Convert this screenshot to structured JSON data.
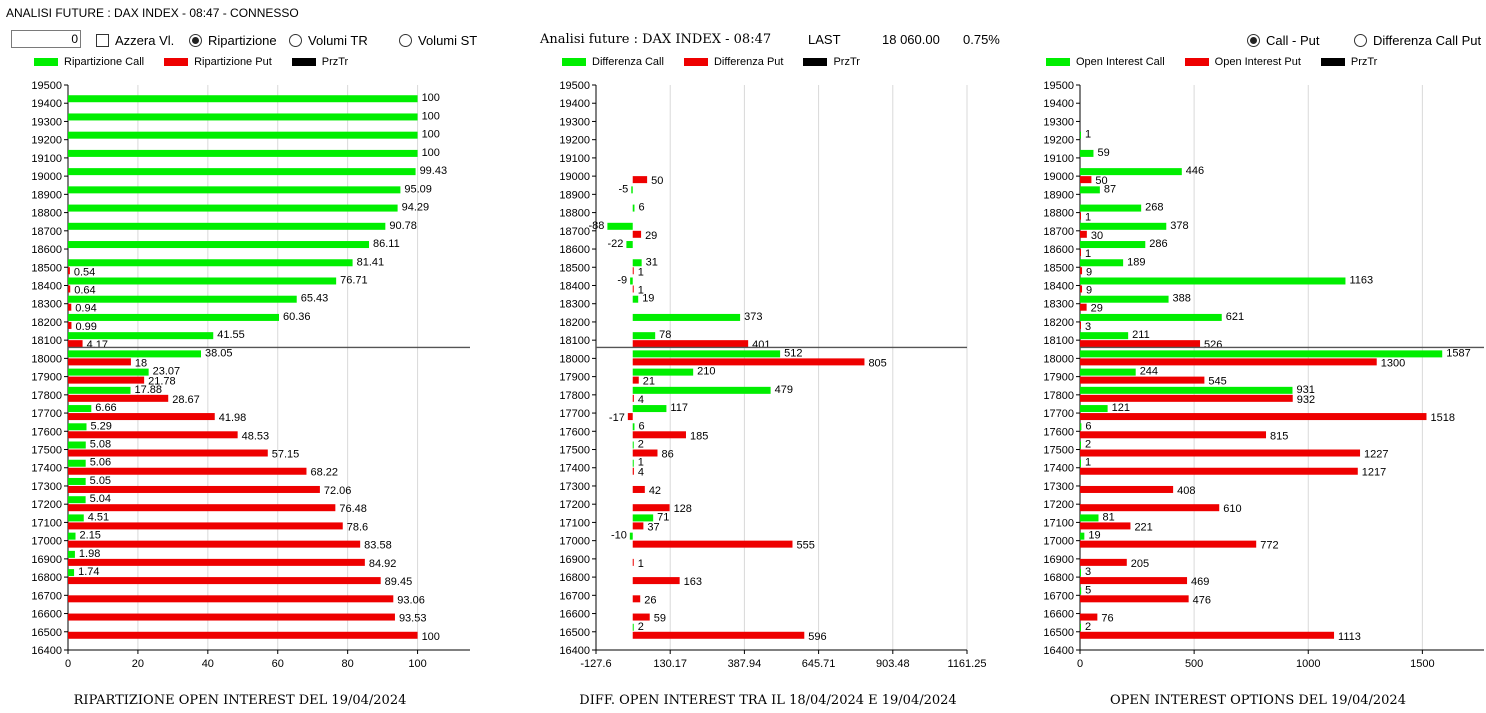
{
  "window": {
    "title": "ANALISI FUTURE : DAX INDEX - 08:47 - CONNESSO"
  },
  "controls": {
    "numeric_value": "0",
    "reset_checkbox_label": "Azzera Vl.",
    "radio_ripartizione": "Ripartizione",
    "radio_volumi_tr": "Volumi TR",
    "radio_volumi_st": "Volumi ST",
    "radio_call_put": "Call - Put",
    "radio_diff_call_put": "Differenza Call Put"
  },
  "header": {
    "title": "Analisi future : DAX INDEX - 08:47",
    "last_label": "LAST",
    "last_value": "18 060.00",
    "change": "0.75%"
  },
  "colors": {
    "call": "#00ee00",
    "put": "#ee0000",
    "przTr": "#000000",
    "grid": "#d9d9d9"
  },
  "chart_data": [
    {
      "type": "bar",
      "orientation": "horizontal",
      "title": "RIPARTIZIONE OPEN INTEREST DEL 19/04/2024",
      "legend": [
        "Ripartizione Call",
        "Ripartizione Put",
        "PrzTr"
      ],
      "categories": [
        16400,
        16500,
        16600,
        16700,
        16800,
        16900,
        17000,
        17100,
        17200,
        17300,
        17400,
        17500,
        17600,
        17700,
        17800,
        17900,
        18000,
        18100,
        18200,
        18300,
        18400,
        18500,
        18600,
        18700,
        18800,
        18900,
        19000,
        19100,
        19200,
        19300,
        19400,
        19500
      ],
      "series": [
        {
          "name": "Ripartizione Call",
          "values": {
            "16800": 1.74,
            "16900": 1.98,
            "17000": 2.15,
            "17100": 4.51,
            "17200": 5.04,
            "17300": 5.05,
            "17400": 5.06,
            "17500": 5.08,
            "17600": 5.29,
            "17700": 6.66,
            "17800": 17.88,
            "17900": 23.07,
            "18000": 38.05,
            "18100": 41.55,
            "18200": 60.36,
            "18300": 65.43,
            "18400": 76.71,
            "18500": 81.41,
            "18600": 86.11,
            "18700": 90.78,
            "18800": 94.29,
            "18900": 95.09,
            "19000": 99.43,
            "19100": 100,
            "19200": 100,
            "19300": 100,
            "19400": 100
          }
        },
        {
          "name": "Ripartizione Put",
          "values": {
            "16500": 100,
            "16600": 93.53,
            "16700": 93.06,
            "16800": 89.45,
            "16900": 84.92,
            "17000": 83.58,
            "17100": 78.6,
            "17200": 76.48,
            "17300": 72.06,
            "17400": 68.22,
            "17500": 57.15,
            "17600": 48.53,
            "17700": 41.98,
            "17800": 28.67,
            "17900": 21.78,
            "18000": 18,
            "18100": 4.17,
            "18200": 0.99,
            "18300": 0.94,
            "18400": 0.64,
            "18500": 0.54
          }
        }
      ],
      "przTr": 18060,
      "xlim": [
        0,
        115
      ],
      "xticks": [
        "0",
        "20",
        "40",
        "60",
        "80",
        "100"
      ],
      "xtick_values": [
        0,
        20,
        40,
        60,
        80,
        100
      ]
    },
    {
      "type": "bar",
      "orientation": "horizontal",
      "title": "DIFF. OPEN INTEREST TRA IL 18/04/2024 E 19/04/2024",
      "legend": [
        "Differenza Call",
        "Differenza Put",
        "PrzTr"
      ],
      "categories": [
        16400,
        16500,
        16600,
        16700,
        16800,
        16900,
        17000,
        17100,
        17200,
        17300,
        17400,
        17500,
        17600,
        17700,
        17800,
        17900,
        18000,
        18100,
        18200,
        18300,
        18400,
        18500,
        18600,
        18700,
        18800,
        18900,
        19000,
        19100,
        19200,
        19300,
        19400,
        19500
      ],
      "series": [
        {
          "name": "Differenza Call",
          "values": {
            "16500": 2,
            "17000": -10,
            "17100": 71,
            "17400": 1,
            "17500": 2,
            "17600": 6,
            "17700": 117,
            "17800": 479,
            "17900": 210,
            "18000": 512,
            "18100": 78,
            "18200": 373,
            "18300": 19,
            "18400": -9,
            "18500": 31,
            "18600": -22,
            "18700": -88,
            "18800": 6,
            "18900": -5
          }
        },
        {
          "name": "Differenza Put",
          "values": {
            "16500": 596,
            "16600": 59,
            "16700": 26,
            "16800": 163,
            "16900": 1,
            "17000": 555,
            "17100": 37,
            "17200": 128,
            "17300": 42,
            "17400": 4,
            "17500": 86,
            "17600": 185,
            "17700": -17,
            "17800": 4,
            "17900": 21,
            "18000": 805,
            "18100": 401,
            "18400": 1,
            "18500": 1,
            "18700": 29,
            "19000": 50
          }
        }
      ],
      "przTr": 18060,
      "xlim": [
        -127.6,
        1161.25
      ],
      "xticks": [
        "-127.6",
        "130.17",
        "387.94",
        "645.71",
        "903.48",
        "1161.25"
      ],
      "xtick_values": [
        -127.6,
        130.17,
        387.94,
        645.71,
        903.48,
        1161.25
      ]
    },
    {
      "type": "bar",
      "orientation": "horizontal",
      "title": "OPEN INTEREST OPTIONS DEL 19/04/2024",
      "legend": [
        "Open Interest Call",
        "Open Interest Put",
        "PrzTr"
      ],
      "categories": [
        16400,
        16500,
        16600,
        16700,
        16800,
        16900,
        17000,
        17100,
        17200,
        17300,
        17400,
        17500,
        17600,
        17700,
        17800,
        17900,
        18000,
        18100,
        18200,
        18300,
        18400,
        18500,
        18600,
        18700,
        18800,
        18900,
        19000,
        19100,
        19200,
        19300,
        19400,
        19500
      ],
      "series": [
        {
          "name": "Open Interest Call",
          "values": {
            "16500": 2,
            "16700": 5,
            "16800": 3,
            "17000": 19,
            "17100": 81,
            "17400": 1,
            "17500": 2,
            "17600": 6,
            "17700": 121,
            "17800": 931,
            "17900": 244,
            "18000": 1587,
            "18100": 211,
            "18200": 621,
            "18300": 388,
            "18400": 1163,
            "18500": 189,
            "18600": 286,
            "18700": 378,
            "18800": 268,
            "18900": 87,
            "19000": 446,
            "19100": 59,
            "19200": 1
          }
        },
        {
          "name": "Open Interest Put",
          "values": {
            "16500": 1113,
            "16600": 76,
            "16700": 476,
            "16800": 469,
            "16900": 205,
            "17000": 772,
            "17100": 221,
            "17200": 610,
            "17300": 408,
            "17400": 1217,
            "17500": 1227,
            "17600": 815,
            "17700": 1518,
            "17800": 932,
            "17900": 545,
            "18000": 1300,
            "18100": 526,
            "18200": 3,
            "18300": 29,
            "18400": 9,
            "18500": 9,
            "18600": 1,
            "18700": 30,
            "18800": 1,
            "19000": 50
          }
        }
      ],
      "przTr": 18060,
      "xlim": [
        0,
        1770
      ],
      "xticks": [
        "0",
        "500",
        "1000",
        "1500"
      ],
      "xtick_values": [
        0,
        500,
        1000,
        1500
      ]
    }
  ]
}
